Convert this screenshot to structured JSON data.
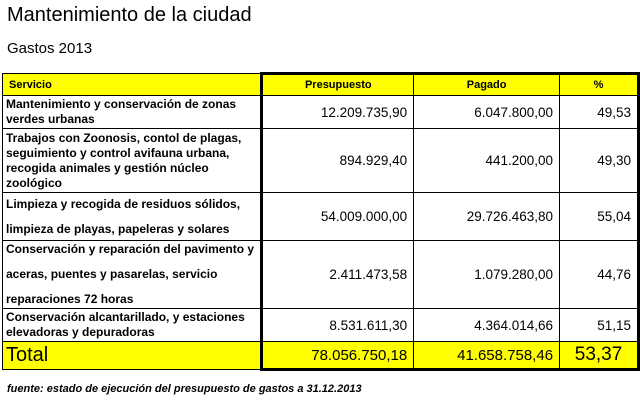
{
  "title": "Mantenimiento de la ciudad",
  "subtitle": "Gastos 2013",
  "table": {
    "headers": [
      "Servicio",
      "Presupuesto",
      "Pagado",
      "%"
    ],
    "rows": [
      {
        "servicio_lines": [
          "Mantenimiento y conservación de zonas",
          "verdes urbanas"
        ],
        "presupuesto": "12.209.735,90",
        "pagado": "6.047.800,00",
        "pct": "49,53"
      },
      {
        "servicio_lines": [
          "Trabajos con Zoonosis, contol de plagas,",
          "seguimiento y control avifauna urbana,",
          "recogida animales y gestión núcleo",
          "zoológico"
        ],
        "presupuesto": "894.929,40",
        "pagado": "441.200,00",
        "pct": "49,30"
      },
      {
        "servicio_lines": [
          "Limpieza y recogida de residuos sólidos,",
          "",
          "limpieza de playas, papeleras y solares"
        ],
        "presupuesto": "54.009.000,00",
        "pagado": "29.726.463,80",
        "pct": "55,04"
      },
      {
        "servicio_lines": [
          "Conservación y reparación del pavimento y",
          "",
          "aceras, puentes y pasarelas, servicio",
          "",
          "reparaciones 72 horas"
        ],
        "presupuesto": "2.411.473,58",
        "pagado": "1.079.280,00",
        "pct": "44,76"
      },
      {
        "servicio_lines": [
          "Conservación alcantarillado, y estaciones",
          "elevadoras y depuradoras"
        ],
        "presupuesto": "8.531.611,30",
        "pagado": "4.364.014,66",
        "pct": "51,15"
      }
    ],
    "total": {
      "label": "Total",
      "presupuesto": "78.056.750,18",
      "pagado": "41.658.758,46",
      "pct": "53,37"
    }
  },
  "footnote": "fuente: estado de ejecución del presupuesto de gastos a 31.12.2013"
}
